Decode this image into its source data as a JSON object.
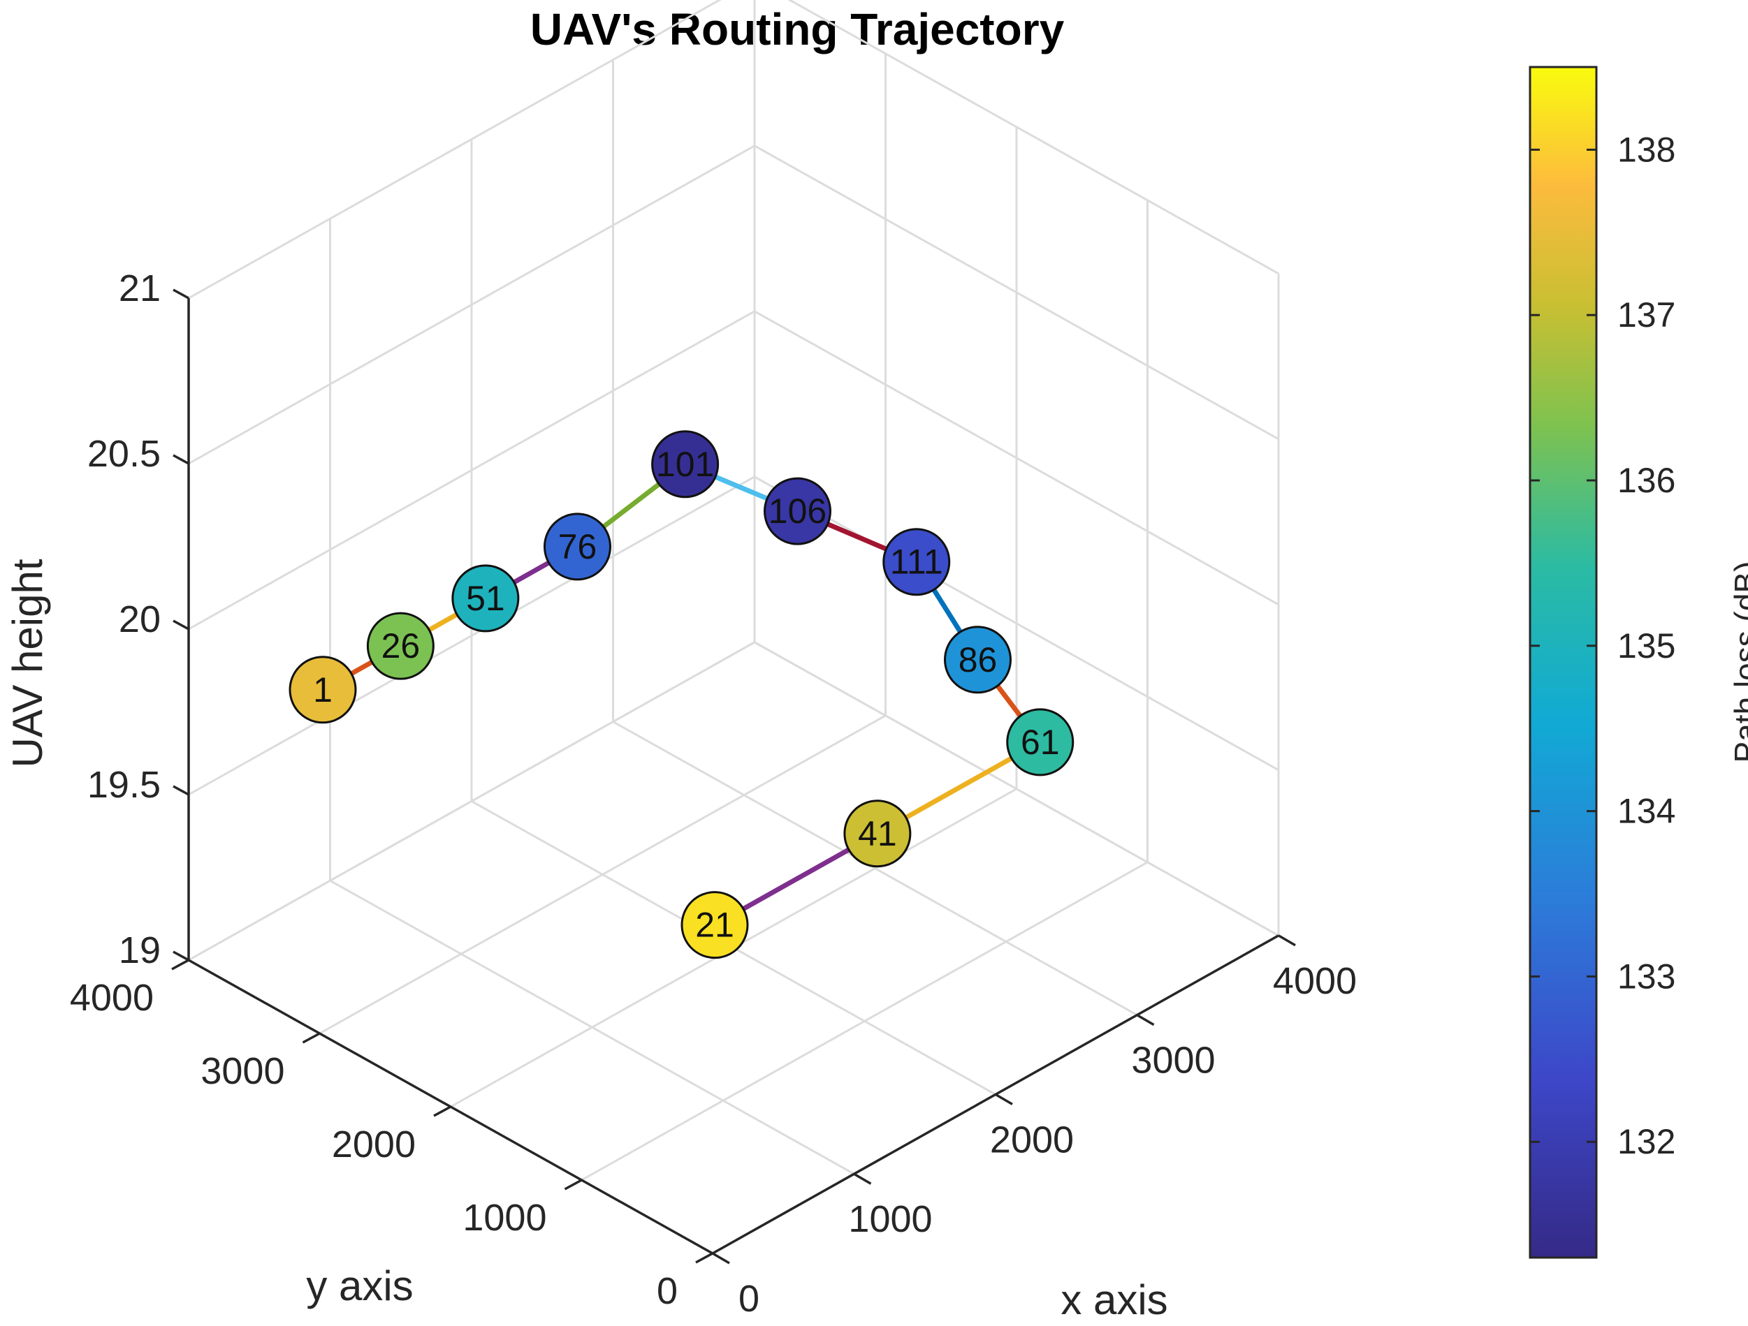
{
  "chart_data": {
    "type": "scatter3d",
    "title": "UAV's Routing Trajectory",
    "xlabel": "x axis",
    "ylabel": "y axis",
    "zlabel": "UAV height",
    "xlim": [
      0,
      4000
    ],
    "ylim": [
      0,
      4000
    ],
    "zlim": [
      19,
      21
    ],
    "x_ticks": [
      "0",
      "1000",
      "2000",
      "3000",
      "4000"
    ],
    "y_ticks": [
      "0",
      "1000",
      "2000",
      "3000",
      "4000"
    ],
    "z_ticks": [
      "19",
      "19.5",
      "20",
      "20.5",
      "21"
    ],
    "colorbar": {
      "label": "Path loss (dB)",
      "range": [
        131.3,
        138.5
      ],
      "ticks": [
        "132",
        "133",
        "134",
        "135",
        "136",
        "137",
        "138"
      ],
      "tick_values": [
        132,
        133,
        134,
        135,
        136,
        137,
        138
      ]
    },
    "points": [
      {
        "label": "1",
        "x": 300,
        "y": 3300,
        "z": 19,
        "path_loss": 137.5
      },
      {
        "label": "26",
        "x": 850,
        "y": 3300,
        "z": 19,
        "path_loss": 136.3
      },
      {
        "label": "51",
        "x": 1450,
        "y": 3300,
        "z": 19,
        "path_loss": 135.0
      },
      {
        "label": "76",
        "x": 2100,
        "y": 3300,
        "z": 19,
        "path_loss": 133.0
      },
      {
        "label": "101",
        "x": 3000,
        "y": 3450,
        "z": 19,
        "path_loss": 131.5
      },
      {
        "label": "106",
        "x": 3100,
        "y": 2700,
        "z": 19,
        "path_loss": 131.8
      },
      {
        "label": "111",
        "x": 3200,
        "y": 1900,
        "z": 19,
        "path_loss": 132.5
      },
      {
        "label": "86",
        "x": 2800,
        "y": 1000,
        "z": 19,
        "path_loss": 134.0
      },
      {
        "label": "61",
        "x": 2500,
        "y": 200,
        "z": 19,
        "path_loss": 135.5
      },
      {
        "label": "41",
        "x": 1350,
        "y": 200,
        "z": 19,
        "path_loss": 137.1
      },
      {
        "label": "21",
        "x": 200,
        "y": 200,
        "z": 19,
        "path_loss": 138.2
      }
    ],
    "segments": [
      {
        "from": "1",
        "to": "26",
        "color": "#D95319"
      },
      {
        "from": "26",
        "to": "51",
        "color": "#EDB120"
      },
      {
        "from": "51",
        "to": "76",
        "color": "#7E2F8E"
      },
      {
        "from": "76",
        "to": "101",
        "color": "#77AC30"
      },
      {
        "from": "101",
        "to": "106",
        "color": "#4DBEEE"
      },
      {
        "from": "106",
        "to": "111",
        "color": "#A2142F"
      },
      {
        "from": "111",
        "to": "86",
        "color": "#0072BD"
      },
      {
        "from": "86",
        "to": "61",
        "color": "#D95319"
      },
      {
        "from": "61",
        "to": "41",
        "color": "#EDB120"
      },
      {
        "from": "41",
        "to": "21",
        "color": "#7E2F8E"
      }
    ]
  }
}
